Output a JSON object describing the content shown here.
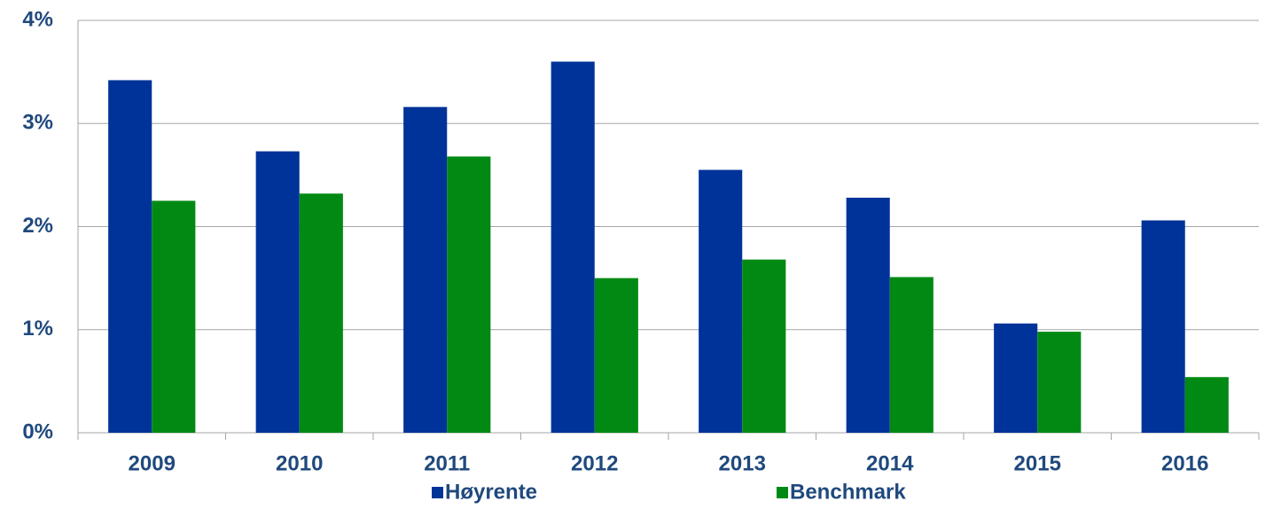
{
  "chart_data": {
    "type": "bar",
    "categories": [
      "2009",
      "2010",
      "2011",
      "2012",
      "2013",
      "2014",
      "2015",
      "2016"
    ],
    "series": [
      {
        "name": "Høyrente",
        "color": "#003399",
        "values": [
          3.42,
          2.73,
          3.16,
          3.6,
          2.55,
          2.28,
          1.06,
          2.06
        ]
      },
      {
        "name": "Benchmark",
        "color": "#008a14",
        "values": [
          2.25,
          2.32,
          2.68,
          1.5,
          1.68,
          1.51,
          0.98,
          0.54
        ]
      }
    ],
    "ylim": [
      0,
      4
    ],
    "yticks": [
      {
        "value": 0,
        "label": "0%"
      },
      {
        "value": 1,
        "label": "1%"
      },
      {
        "value": 2,
        "label": "2%"
      },
      {
        "value": 3,
        "label": "3%"
      },
      {
        "value": 4,
        "label": "4%"
      }
    ],
    "grid": true,
    "legend": "bottom"
  }
}
